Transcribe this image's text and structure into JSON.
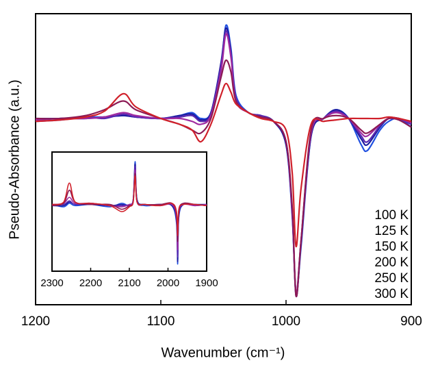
{
  "chart_data": [
    {
      "type": "line",
      "xlabel": "Wavenumber (cm⁻¹)",
      "ylabel": "Pseudo-Absorbance (a.u.)",
      "xlim": [
        1200,
        900
      ],
      "ylim": [
        0,
        100
      ],
      "xticks": [
        1200,
        1100,
        1000,
        900
      ],
      "legend": "lower right",
      "x": [
        1200,
        1180,
        1160,
        1145,
        1130,
        1120,
        1100,
        1085,
        1075,
        1068,
        1060,
        1052,
        1048,
        1044,
        1040,
        1030,
        1020,
        1010,
        1000,
        995,
        992,
        988,
        980,
        970,
        960,
        950,
        940,
        935,
        925,
        918,
        910,
        900
      ],
      "series": [
        {
          "name": "100 K",
          "color": "#2050e0",
          "values": [
            64,
            64,
            64.5,
            64.5,
            65,
            64.5,
            64,
            65,
            66,
            64,
            66,
            82,
            96,
            88,
            72,
            66,
            65,
            63,
            55,
            30,
            4,
            20,
            58,
            64,
            67,
            64,
            55,
            53,
            60,
            63,
            64,
            61
          ]
        },
        {
          "name": "125 K",
          "color": "#1c1ca0",
          "values": [
            63.5,
            64,
            64,
            64.5,
            65,
            64.5,
            64,
            65,
            65.5,
            63.5,
            66,
            83,
            95,
            87,
            71,
            66,
            65,
            63,
            55,
            31,
            3,
            21,
            58,
            64,
            67,
            64,
            57,
            55,
            61,
            64,
            64,
            62
          ]
        },
        {
          "name": "150 K",
          "color": "#5a28b0",
          "values": [
            63,
            63.5,
            64.5,
            64,
            65.5,
            64.5,
            64,
            64.5,
            65,
            63,
            65.5,
            82,
            94,
            86,
            71,
            66,
            65,
            63,
            56,
            31,
            3.5,
            22,
            59,
            64,
            66.5,
            64,
            58,
            56,
            61.5,
            64,
            64,
            62
          ]
        },
        {
          "name": "200 K",
          "color": "#a02aa0",
          "values": [
            63.5,
            64,
            64,
            64.5,
            66,
            65,
            64,
            64,
            63,
            62,
            65,
            80,
            93,
            85,
            70,
            66,
            64.5,
            63,
            56,
            32,
            4,
            22,
            59,
            64,
            66,
            64,
            59,
            58,
            62,
            64,
            64,
            62.5
          ]
        },
        {
          "name": "250 K",
          "color": "#8c1a55",
          "values": [
            64,
            64,
            65,
            67,
            70,
            67,
            64,
            62,
            60,
            59,
            64,
            78,
            84,
            80,
            70,
            66,
            64.5,
            63,
            56,
            33,
            3,
            22,
            60,
            64,
            65,
            64,
            60,
            59,
            62,
            64,
            63.5,
            61
          ]
        },
        {
          "name": "300 K",
          "color": "#d0202a",
          "values": [
            63,
            63.5,
            64.5,
            66.5,
            72.5,
            68,
            64,
            62,
            60,
            56,
            62,
            72,
            76,
            73,
            69,
            66,
            64,
            63,
            60,
            45,
            20,
            40,
            62,
            63,
            63.5,
            64,
            64,
            64,
            64,
            64.5,
            64,
            63
          ]
        }
      ]
    },
    {
      "type": "line",
      "xlim": [
        2300,
        1900
      ],
      "ylim": [
        0,
        100
      ],
      "xticks": [
        2300,
        2200,
        2100,
        2000,
        1900
      ],
      "x": [
        2300,
        2270,
        2255,
        2240,
        2200,
        2150,
        2120,
        2100,
        2090,
        2085,
        2080,
        2060,
        2020,
        1990,
        1978,
        1975,
        1972,
        1960,
        1930,
        1900
      ],
      "series": [
        {
          "color": "#2050e0",
          "values": [
            56,
            54,
            57,
            55,
            56,
            54,
            57,
            55,
            60,
            92,
            60,
            55,
            56,
            55,
            40,
            6,
            45,
            56,
            55,
            56
          ]
        },
        {
          "color": "#1c1ca0",
          "values": [
            55,
            55,
            58,
            56,
            56,
            55,
            56,
            55,
            60,
            90,
            60,
            56,
            56,
            55,
            42,
            8,
            46,
            56,
            56,
            56
          ]
        },
        {
          "color": "#5a28b0",
          "values": [
            56,
            56,
            59,
            56,
            57,
            55,
            55,
            56,
            60,
            88,
            59,
            56,
            56,
            56,
            44,
            12,
            48,
            56,
            56,
            55
          ]
        },
        {
          "color": "#a02aa0",
          "values": [
            56,
            57,
            62,
            57,
            57,
            55,
            54,
            56,
            59,
            85,
            58,
            56,
            55,
            56,
            46,
            18,
            50,
            56,
            55,
            56
          ]
        },
        {
          "color": "#8c1a55",
          "values": [
            55,
            57,
            68,
            58,
            56,
            56,
            52,
            55,
            58,
            82,
            58,
            56,
            56,
            57,
            48,
            25,
            51,
            57,
            56,
            55
          ]
        },
        {
          "color": "#d0202a",
          "values": [
            56,
            58,
            74,
            58,
            57,
            55,
            50,
            54,
            58,
            80,
            58,
            56,
            55,
            57,
            50,
            30,
            52,
            56,
            56,
            55
          ]
        }
      ]
    }
  ]
}
